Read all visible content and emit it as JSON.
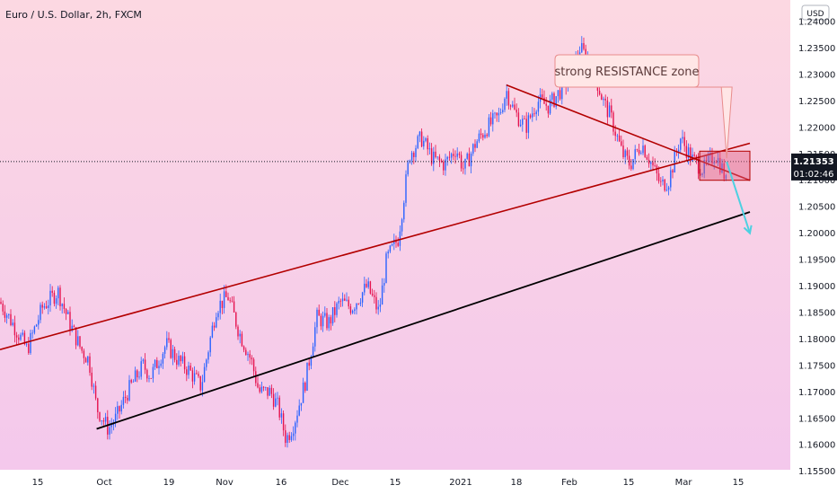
{
  "colors": {
    "bg_top": "#fcd8e2",
    "bg_bottom": "#f4c8ec",
    "up": "#2962ff",
    "down": "#e5134f",
    "trend_red": "#b30000",
    "trend_black": "#000000",
    "zone_fill": "#e06080",
    "arrow": "#4dd0e1",
    "price_badge": "#131722"
  },
  "header": {
    "title": "Euro / U.S. Dollar, 2h, FXCM"
  },
  "axis": {
    "currency": "USD",
    "y_ticks": [
      "1.24000",
      "1.23500",
      "1.23000",
      "1.22500",
      "1.22000",
      "1.21500",
      "1.21000",
      "1.20500",
      "1.20000",
      "1.19500",
      "1.19000",
      "1.18500",
      "1.18000",
      "1.17500",
      "1.17000",
      "1.16500",
      "1.16000",
      "1.15500"
    ],
    "x_ticks": [
      "15",
      "Oct",
      "19",
      "Nov",
      "16",
      "Dec",
      "15",
      "2021",
      "18",
      "Feb",
      "15",
      "Mar",
      "15"
    ]
  },
  "price_badge": {
    "price": "1.21353",
    "countdown": "01:02:46"
  },
  "annotation": {
    "text": "strong RESISTANCE zone"
  },
  "chart_data": {
    "type": "candlestick",
    "title": "Euro / U.S. Dollar, 2h, FXCM",
    "x_range": [
      "2020-09-06",
      "2021-03-19"
    ],
    "ylim": [
      1.1525,
      1.2425
    ],
    "grid": false,
    "last_price": 1.21353,
    "price_path": [
      [
        "2020-09-06",
        1.187
      ],
      [
        "2020-09-10",
        1.182
      ],
      [
        "2020-09-13",
        1.178
      ],
      [
        "2020-09-17",
        1.186
      ],
      [
        "2020-09-21",
        1.189
      ],
      [
        "2020-09-24",
        1.183
      ],
      [
        "2020-09-27",
        1.178
      ],
      [
        "2020-09-29",
        1.176
      ],
      [
        "2020-10-01",
        1.167
      ],
      [
        "2020-10-04",
        1.163
      ],
      [
        "2020-10-06",
        1.165
      ],
      [
        "2020-10-09",
        1.17
      ],
      [
        "2020-10-13",
        1.175
      ],
      [
        "2020-10-15",
        1.173
      ],
      [
        "2020-10-19",
        1.179
      ],
      [
        "2020-10-22",
        1.176
      ],
      [
        "2020-10-25",
        1.174
      ],
      [
        "2020-10-28",
        1.171
      ],
      [
        "2020-11-01",
        1.186
      ],
      [
        "2020-11-04",
        1.188
      ],
      [
        "2020-11-07",
        1.181
      ],
      [
        "2020-11-10",
        1.176
      ],
      [
        "2020-11-12",
        1.17
      ],
      [
        "2020-11-15",
        1.17
      ],
      [
        "2020-11-17",
        1.167
      ],
      [
        "2020-11-19",
        1.161
      ],
      [
        "2020-11-21",
        1.164
      ],
      [
        "2020-11-24",
        1.172
      ],
      [
        "2020-11-27",
        1.184
      ],
      [
        "2020-11-30",
        1.183
      ],
      [
        "2020-12-03",
        1.187
      ],
      [
        "2020-12-06",
        1.186
      ],
      [
        "2020-12-10",
        1.19
      ],
      [
        "2020-12-13",
        1.185
      ],
      [
        "2020-12-15",
        1.195
      ],
      [
        "2020-12-18",
        1.199
      ],
      [
        "2020-12-21",
        1.215
      ],
      [
        "2020-12-24",
        1.218
      ],
      [
        "2020-12-27",
        1.214
      ],
      [
        "2020-12-30",
        1.213
      ],
      [
        "2021-01-02",
        1.216
      ],
      [
        "2021-01-04",
        1.212
      ],
      [
        "2021-01-07",
        1.217
      ],
      [
        "2021-01-10",
        1.22
      ],
      [
        "2021-01-13",
        1.222
      ],
      [
        "2021-01-15",
        1.227
      ],
      [
        "2021-01-17",
        1.223
      ],
      [
        "2021-01-20",
        1.22
      ],
      [
        "2021-01-23",
        1.225
      ],
      [
        "2021-01-26",
        1.224
      ],
      [
        "2021-01-29",
        1.227
      ],
      [
        "2021-02-01",
        1.23
      ],
      [
        "2021-02-03",
        1.235
      ],
      [
        "2021-02-06",
        1.232
      ],
      [
        "2021-02-09",
        1.225
      ],
      [
        "2021-02-11",
        1.222
      ],
      [
        "2021-02-14",
        1.215
      ],
      [
        "2021-02-16",
        1.213
      ],
      [
        "2021-02-19",
        1.217
      ],
      [
        "2021-02-21",
        1.214
      ],
      [
        "2021-02-24",
        1.209
      ],
      [
        "2021-02-26",
        1.21
      ],
      [
        "2021-03-01",
        1.218
      ],
      [
        "2021-03-04",
        1.214
      ],
      [
        "2021-03-07",
        1.212
      ],
      [
        "2021-03-10",
        1.215
      ],
      [
        "2021-03-12",
        1.212
      ],
      [
        "2021-03-14",
        1.206
      ],
      [
        "2021-03-16",
        1.209
      ]
    ],
    "trendlines": [
      {
        "name": "red-support",
        "color": "#b30000",
        "from": [
          "2020-09-06",
          1.178
        ],
        "to": [
          "2021-03-19",
          1.217
        ]
      },
      {
        "name": "red-resistance",
        "color": "#b30000",
        "from": [
          "2021-01-15",
          1.228
        ],
        "to": [
          "2021-03-19",
          1.21
        ]
      },
      {
        "name": "black-support",
        "color": "#000000",
        "from": [
          "2020-10-01",
          1.163
        ],
        "to": [
          "2021-03-19",
          1.204
        ]
      }
    ],
    "resistance_zone": {
      "x": [
        "2021-03-06",
        "2021-03-19"
      ],
      "y": [
        1.21,
        1.2155
      ]
    },
    "projection": {
      "from": [
        "2021-03-13",
        1.2135
      ],
      "to": [
        "2021-03-19",
        1.2
      ]
    },
    "annotations": [
      "strong RESISTANCE zone"
    ]
  }
}
